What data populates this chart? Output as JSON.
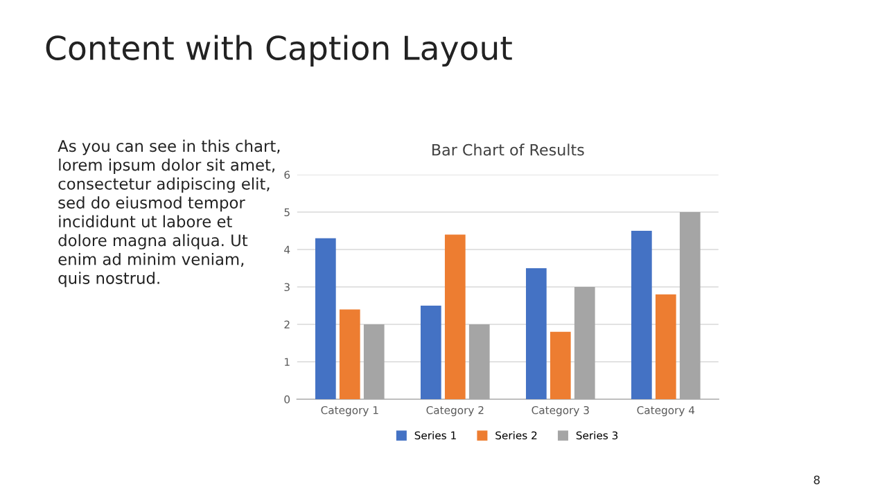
{
  "chart_data": {
    "type": "bar",
    "title": "Bar Chart of Results",
    "categories": [
      "Category 1",
      "Category 2",
      "Category 3",
      "Category 4"
    ],
    "series": [
      {
        "name": "Series 1",
        "color": "#4472c4",
        "values": [
          4.3,
          2.5,
          3.5,
          4.5
        ]
      },
      {
        "name": "Series 2",
        "color": "#ed7d31",
        "values": [
          2.4,
          4.4,
          1.8,
          2.8
        ]
      },
      {
        "name": "Series 3",
        "color": "#a5a5a5",
        "values": [
          2,
          2,
          3,
          5
        ]
      }
    ],
    "ylim": [
      0,
      6
    ],
    "yticks": [
      0,
      1,
      2,
      3,
      4,
      5,
      6
    ],
    "grid": "y",
    "legend": "bottom",
    "annotations": [
      "Content with Caption Layout",
      "As you can see in this chart,\nlorem ipsum dolor sit amet,\nconsectetur adipiscing elit,\nsed do eiusmod tempor\nincididunt ut labore et\ndolore magna aliqua. Ut\nenim ad minim veniam,\nquis nostrud.",
      "8"
    ]
  }
}
